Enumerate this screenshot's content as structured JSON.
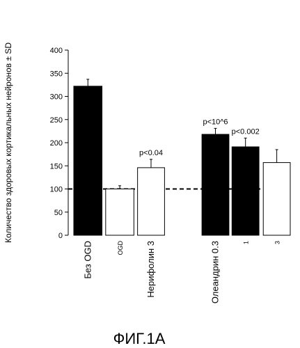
{
  "chart_data": {
    "type": "bar",
    "ylabel": "Количество здоровых кортикальных нейронов ± SD",
    "ylim": [
      0,
      400
    ],
    "yticks": [
      0,
      50,
      100,
      150,
      200,
      250,
      300,
      350,
      400
    ],
    "reference_line": {
      "value": 100,
      "style": "dashed"
    },
    "bars": [
      {
        "label": "Без OGD",
        "value": 322,
        "error": 15,
        "fill": "#000000"
      },
      {
        "label": "OGD",
        "value": 100,
        "error": 7,
        "fill": "#ffffff"
      },
      {
        "label": "Нерифолин 3",
        "value": 146,
        "error": 18,
        "fill": "#ffffff",
        "annotation": "p<0.04"
      },
      {
        "label": "Олеандрин 0.3",
        "value": 218,
        "error": 13,
        "fill": "#000000",
        "annotation": "p<10^6"
      },
      {
        "label": "1",
        "value": 191,
        "error": 19,
        "fill": "#000000",
        "annotation": "p<0.002"
      },
      {
        "label": "3",
        "value": 157,
        "error": 28,
        "fill": "#ffffff"
      }
    ]
  },
  "caption": "ФИГ.1А"
}
